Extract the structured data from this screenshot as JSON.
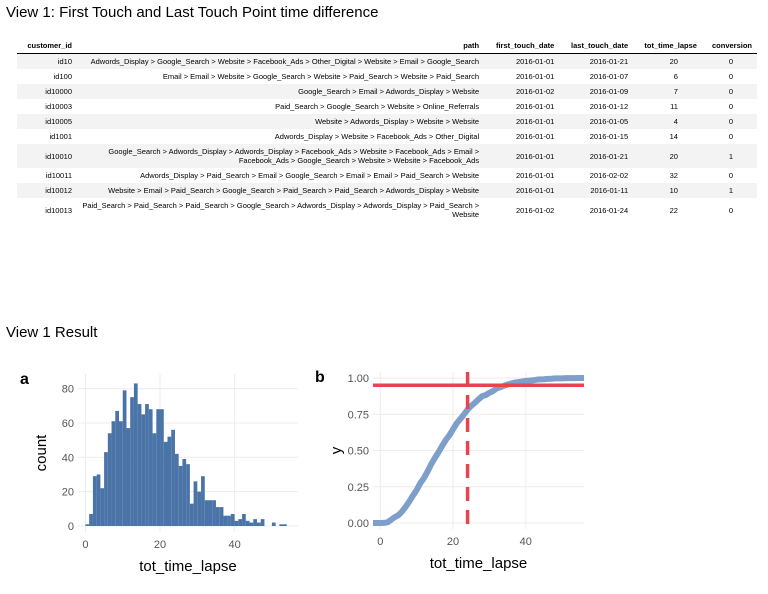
{
  "view1_title": "View 1: First Touch and Last Touch Point time difference",
  "result_title": "View 1 Result",
  "table": {
    "headers": [
      "customer_id",
      "path",
      "first_touch_date",
      "last_touch_date",
      "tot_time_lapse",
      "conversion"
    ],
    "rows": [
      [
        "id10",
        "Adwords_Display > Google_Search > Website > Facebook_Ads > Other_Digital > Website > Email > Google_Search",
        "2016-01-01",
        "2016-01-21",
        "20",
        "0"
      ],
      [
        "id100",
        "Email > Email > Website > Google_Search > Website > Paid_Search > Website > Paid_Search",
        "2016-01-01",
        "2016-01-07",
        "6",
        "0"
      ],
      [
        "id10000",
        "Google_Search > Email > Adwords_Display > Website",
        "2016-01-02",
        "2016-01-09",
        "7",
        "0"
      ],
      [
        "id10003",
        "Paid_Search > Google_Search > Website > Online_Referrals",
        "2016-01-01",
        "2016-01-12",
        "11",
        "0"
      ],
      [
        "id10005",
        "Website > Adwords_Display > Website > Website",
        "2016-01-01",
        "2016-01-05",
        "4",
        "0"
      ],
      [
        "id1001",
        "Adwords_Display > Website > Facebook_Ads > Other_Digital",
        "2016-01-01",
        "2016-01-15",
        "14",
        "0"
      ],
      [
        "id10010",
        "Google_Search > Adwords_Display > Adwords_Display > Facebook_Ads > Website > Facebook_Ads > Email > Facebook_Ads > Google_Search > Website > Website > Facebook_Ads",
        "2016-01-01",
        "2016-01-21",
        "20",
        "1"
      ],
      [
        "id10011",
        "Adwords_Display > Paid_Search > Email > Google_Search > Email > Email > Paid_Search > Website",
        "2016-01-01",
        "2016-02-02",
        "32",
        "0"
      ],
      [
        "id10012",
        "Website > Email > Paid_Search > Google_Search > Paid_Search > Paid_Search > Adwords_Display > Website",
        "2016-01-01",
        "2016-01-11",
        "10",
        "1"
      ],
      [
        "id10013",
        "Paid_Search > Paid_Search > Paid_Search > Google_Search > Adwords_Display > Adwords_Display > Paid_Search > Website",
        "2016-01-02",
        "2016-01-24",
        "22",
        "0"
      ]
    ]
  },
  "chart_data": [
    {
      "type": "bar",
      "panel": "a",
      "xlabel": "tot_time_lapse",
      "ylabel": "count",
      "xlim": [
        -2,
        57
      ],
      "ylim": [
        0,
        85
      ],
      "xticks": [
        "0",
        "20",
        "40"
      ],
      "yticks": [
        "0",
        "20",
        "40",
        "60",
        "80"
      ],
      "bin_width": 1,
      "color": "#4a74a8",
      "values": [
        1,
        7,
        29,
        30,
        22,
        43,
        54,
        61,
        67,
        61,
        79,
        57,
        75,
        83,
        71,
        65,
        71,
        68,
        54,
        68,
        68,
        49,
        52,
        56,
        42,
        35,
        39,
        36,
        13,
        26,
        20,
        29,
        15,
        15,
        15,
        11,
        11,
        6,
        6,
        7,
        3,
        4,
        7,
        3,
        2,
        4,
        2,
        4,
        0,
        0,
        2,
        0,
        1,
        1
      ]
    },
    {
      "type": "line",
      "panel": "b",
      "xlabel": "tot_time_lapse",
      "ylabel": "y",
      "xlim": [
        -2,
        56
      ],
      "ylim": [
        0,
        1
      ],
      "xticks": [
        "0",
        "20",
        "40"
      ],
      "yticks": [
        "0.00",
        "0.25",
        "0.50",
        "0.75",
        "1.00"
      ],
      "color": "#7f9fcb",
      "hline": 0.95,
      "vline": 24,
      "ref_color": "#e8434e"
    }
  ]
}
